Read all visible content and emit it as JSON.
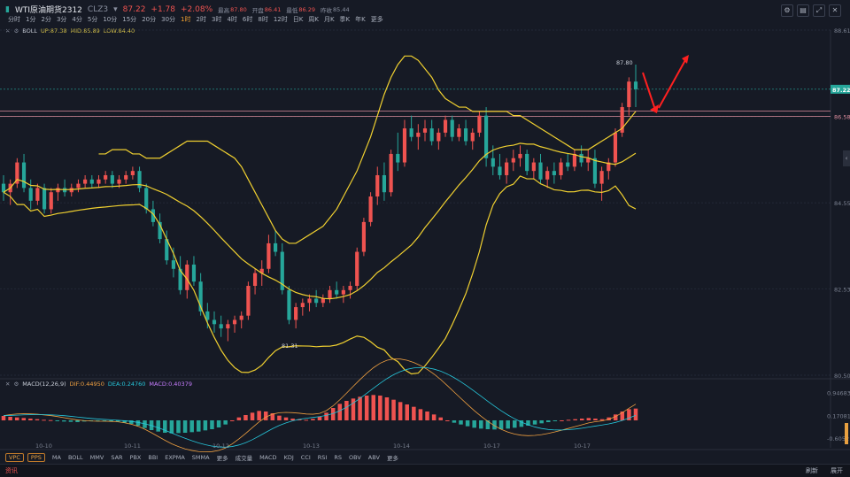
{
  "header": {
    "name": "WTI原油期货2312",
    "code": "CLZ3",
    "dropdown": "▾",
    "price": "87.22",
    "change": "+1.78",
    "change_pct": "+2.08%",
    "high_label": "最高",
    "high": "87.80",
    "open_label": "开盘",
    "open": "86.41",
    "low_label": "最低",
    "low": "86.29",
    "prev_label": "昨收",
    "prev": "85.44"
  },
  "timeframes": [
    "分时",
    "1分",
    "2分",
    "3分",
    "4分",
    "5分",
    "10分",
    "15分",
    "20分",
    "30分",
    "1时",
    "2时",
    "3时",
    "4时",
    "6时",
    "8时",
    "12时",
    "日K",
    "周K",
    "月K",
    "季K",
    "年K",
    "更多"
  ],
  "active_timeframe": "1时",
  "tool_icons": [
    "settings-icon",
    "layout-icon",
    "maximize-icon",
    "close-icon"
  ],
  "boll_legend": {
    "name": "BOLL",
    "up": "UP:87.38",
    "mid": "MID:85.89",
    "low": "LOW:84.40"
  },
  "macd_legend": {
    "name": "MACD(12,26,9)",
    "dif": "DIF:0.44950",
    "dea": "DEA:0.24760",
    "macd": "MACD:0.40379"
  },
  "indicators": [
    "MA",
    "BOLL",
    "MMV",
    "SAR",
    "PBX",
    "BBI",
    "EXPMA",
    "SMMA",
    "更多",
    "成交量",
    "MACD",
    "KDJ",
    "CCI",
    "RSI",
    "RS",
    "OBV",
    "ABV",
    "更多"
  ],
  "indicator_buttons": [
    "VPC",
    "PPS"
  ],
  "status": {
    "info": "资讯",
    "refresh": "刷新",
    "expand": "展开"
  },
  "colors": {
    "up": "#ef5350",
    "down": "#26a69a",
    "boll": "#f0d030",
    "dif": "#f0a040",
    "dea": "#26c6da",
    "bg": "#161a25"
  },
  "chart_data": [
    {
      "type": "candlestick",
      "title": "WTI原油期货2312 1时",
      "y_ticks": [
        "88.61",
        "86.58",
        "84.55",
        "82.53",
        "80.50"
      ],
      "ylim": [
        80.5,
        88.61
      ],
      "x_ticks": [
        "10-10",
        "10-11",
        "10-12",
        "10-13",
        "10-14",
        "10-17",
        "10-17"
      ],
      "last_price_label": "87.22",
      "last_price": 87.22,
      "reference_line": 86.58,
      "annotations": [
        {
          "text": "87.80",
          "type": "high"
        },
        {
          "text": "81.31",
          "type": "low"
        }
      ],
      "ohlc": [
        [
          85.0,
          85.2,
          84.6,
          84.8
        ],
        [
          84.8,
          85.1,
          84.5,
          85.0
        ],
        [
          85.0,
          85.6,
          84.9,
          85.5
        ],
        [
          85.5,
          85.7,
          84.8,
          84.9
        ],
        [
          84.9,
          85.1,
          84.4,
          84.6
        ],
        [
          84.6,
          85.0,
          84.5,
          84.9
        ],
        [
          84.9,
          85.0,
          84.3,
          84.4
        ],
        [
          84.4,
          84.9,
          84.3,
          84.8
        ],
        [
          84.8,
          85.0,
          84.6,
          84.9
        ],
        [
          84.9,
          85.1,
          84.7,
          84.8
        ],
        [
          84.8,
          85.0,
          84.7,
          84.9
        ],
        [
          84.9,
          85.1,
          84.8,
          85.0
        ],
        [
          85.0,
          85.2,
          84.9,
          85.1
        ],
        [
          85.1,
          85.2,
          84.9,
          85.0
        ],
        [
          85.0,
          85.2,
          84.9,
          85.1
        ],
        [
          85.1,
          85.3,
          85.0,
          85.2
        ],
        [
          85.2,
          85.3,
          84.9,
          85.0
        ],
        [
          85.0,
          85.2,
          84.9,
          85.1
        ],
        [
          85.1,
          85.3,
          85.0,
          85.2
        ],
        [
          85.2,
          85.4,
          85.1,
          85.3
        ],
        [
          85.3,
          85.4,
          84.8,
          84.9
        ],
        [
          84.9,
          85.0,
          84.3,
          84.4
        ],
        [
          84.4,
          84.6,
          84.0,
          84.1
        ],
        [
          84.1,
          84.3,
          83.6,
          83.7
        ],
        [
          83.7,
          83.9,
          83.1,
          83.2
        ],
        [
          83.2,
          83.5,
          82.8,
          83.0
        ],
        [
          83.0,
          83.3,
          82.4,
          82.5
        ],
        [
          82.5,
          83.2,
          82.3,
          83.1
        ],
        [
          83.1,
          83.3,
          82.6,
          82.7
        ],
        [
          82.7,
          82.9,
          81.9,
          82.0
        ],
        [
          82.0,
          82.2,
          81.6,
          81.8
        ],
        [
          81.8,
          82.0,
          81.5,
          81.7
        ],
        [
          81.7,
          81.9,
          81.4,
          81.6
        ],
        [
          81.6,
          81.8,
          81.3,
          81.7
        ],
        [
          81.7,
          81.9,
          81.5,
          81.8
        ],
        [
          81.8,
          82.0,
          81.6,
          81.9
        ],
        [
          81.9,
          82.7,
          81.8,
          82.6
        ],
        [
          82.6,
          83.0,
          82.4,
          82.9
        ],
        [
          82.9,
          83.2,
          82.6,
          83.0
        ],
        [
          83.0,
          83.8,
          82.9,
          83.6
        ],
        [
          83.6,
          83.9,
          83.3,
          83.4
        ],
        [
          83.4,
          83.6,
          82.4,
          82.5
        ],
        [
          82.5,
          82.6,
          81.7,
          81.8
        ],
        [
          81.8,
          82.2,
          81.6,
          82.1
        ],
        [
          82.1,
          82.3,
          81.9,
          82.2
        ],
        [
          82.2,
          82.4,
          82.0,
          82.3
        ],
        [
          82.3,
          82.5,
          82.1,
          82.2
        ],
        [
          82.2,
          82.4,
          82.1,
          82.3
        ],
        [
          82.3,
          82.6,
          82.2,
          82.5
        ],
        [
          82.5,
          82.7,
          82.3,
          82.4
        ],
        [
          82.4,
          82.6,
          82.2,
          82.5
        ],
        [
          82.5,
          82.7,
          82.3,
          82.6
        ],
        [
          82.6,
          83.5,
          82.5,
          83.4
        ],
        [
          83.4,
          84.2,
          83.3,
          84.1
        ],
        [
          84.1,
          84.8,
          84.0,
          84.7
        ],
        [
          84.7,
          85.4,
          84.5,
          85.2
        ],
        [
          85.2,
          85.5,
          84.6,
          84.8
        ],
        [
          84.8,
          85.8,
          84.7,
          85.7
        ],
        [
          85.7,
          86.2,
          85.3,
          85.5
        ],
        [
          85.5,
          86.5,
          85.4,
          86.3
        ],
        [
          86.3,
          86.6,
          86.0,
          86.1
        ],
        [
          86.1,
          86.4,
          85.8,
          86.2
        ],
        [
          86.2,
          86.5,
          86.0,
          86.3
        ],
        [
          86.3,
          86.5,
          85.9,
          86.0
        ],
        [
          86.0,
          86.3,
          85.8,
          86.2
        ],
        [
          86.2,
          86.6,
          86.1,
          86.5
        ],
        [
          86.5,
          86.6,
          86.0,
          86.1
        ],
        [
          86.1,
          86.4,
          86.0,
          86.3
        ],
        [
          86.3,
          86.5,
          85.9,
          86.0
        ],
        [
          86.0,
          86.3,
          85.8,
          86.2
        ],
        [
          86.2,
          86.7,
          86.1,
          86.6
        ],
        [
          86.6,
          86.8,
          85.4,
          85.6
        ],
        [
          85.6,
          85.9,
          85.2,
          85.4
        ],
        [
          85.4,
          85.7,
          85.1,
          85.2
        ],
        [
          85.2,
          85.6,
          85.0,
          85.5
        ],
        [
          85.5,
          85.8,
          85.3,
          85.6
        ],
        [
          85.6,
          85.9,
          85.4,
          85.7
        ],
        [
          85.7,
          85.8,
          85.2,
          85.3
        ],
        [
          85.3,
          85.6,
          85.1,
          85.5
        ],
        [
          85.5,
          85.7,
          85.0,
          85.1
        ],
        [
          85.1,
          85.4,
          84.9,
          85.3
        ],
        [
          85.3,
          85.5,
          85.0,
          85.2
        ],
        [
          85.2,
          85.6,
          85.1,
          85.5
        ],
        [
          85.5,
          85.7,
          85.3,
          85.4
        ],
        [
          85.4,
          85.8,
          85.3,
          85.7
        ],
        [
          85.7,
          85.9,
          85.4,
          85.5
        ],
        [
          85.5,
          85.8,
          85.3,
          85.6
        ],
        [
          85.6,
          85.8,
          84.9,
          85.0
        ],
        [
          85.0,
          85.4,
          84.6,
          85.3
        ],
        [
          85.3,
          85.6,
          85.1,
          85.5
        ],
        [
          85.5,
          86.3,
          85.4,
          86.2
        ],
        [
          86.2,
          86.9,
          86.1,
          86.8
        ],
        [
          86.8,
          87.5,
          86.6,
          87.4
        ],
        [
          87.4,
          87.8,
          86.8,
          87.22
        ]
      ],
      "boll_upper": [
        85.7,
        85.7,
        85.8,
        85.8,
        85.8,
        85.7,
        85.7,
        85.6,
        85.6,
        85.6,
        85.7,
        85.8,
        85.9,
        86.0,
        86.0,
        86.0,
        86.0,
        85.9,
        85.8,
        85.7,
        85.6,
        85.4,
        85.1,
        84.8,
        84.5,
        84.2,
        83.9,
        83.7,
        83.6,
        83.6,
        83.7,
        83.8,
        83.9,
        84.0,
        84.2,
        84.4,
        84.7,
        85.0,
        85.3,
        85.7,
        86.1,
        86.6,
        87.1,
        87.5,
        87.8,
        88.0,
        88.0,
        87.9,
        87.7,
        87.5,
        87.2,
        87.0,
        86.9,
        86.8,
        86.8,
        86.7,
        86.7,
        86.7,
        86.7,
        86.7,
        86.7,
        86.6,
        86.6,
        86.5,
        86.4,
        86.3,
        86.2,
        86.1,
        86.0,
        85.9,
        85.8,
        85.8,
        85.8,
        85.9,
        86.0,
        86.1,
        86.2,
        86.3,
        86.5,
        86.7
      ]
    },
    {
      "type": "macd",
      "y_ticks": [
        "0.94683",
        "0.17081",
        "-0.6052"
      ],
      "ylim": [
        -0.75,
        1.05
      ],
      "hist": [
        0.15,
        0.12,
        0.1,
        0.08,
        0.06,
        0.04,
        0.02,
        0.01,
        -0.02,
        -0.04,
        -0.05,
        -0.06,
        -0.04,
        -0.03,
        -0.02,
        -0.01,
        -0.02,
        -0.04,
        -0.08,
        -0.12,
        -0.18,
        -0.26,
        -0.33,
        -0.38,
        -0.42,
        -0.44,
        -0.43,
        -0.42,
        -0.4,
        -0.38,
        -0.34,
        -0.3,
        -0.24,
        -0.14,
        0.0,
        0.1,
        0.18,
        0.26,
        0.32,
        0.3,
        0.24,
        0.16,
        0.1,
        0.06,
        0.04,
        0.02,
        0.05,
        0.12,
        0.26,
        0.42,
        0.56,
        0.66,
        0.74,
        0.8,
        0.84,
        0.86,
        0.84,
        0.78,
        0.7,
        0.62,
        0.54,
        0.46,
        0.38,
        0.3,
        0.2,
        0.1,
        0.0,
        -0.08,
        -0.14,
        -0.2,
        -0.25,
        -0.28,
        -0.3,
        -0.31,
        -0.3,
        -0.28,
        -0.25,
        -0.22,
        -0.18,
        -0.14,
        -0.1,
        -0.06,
        -0.03,
        0.0,
        0.02,
        0.04,
        0.06,
        0.08,
        0.06,
        0.04,
        0.1,
        0.2,
        0.3,
        0.38,
        0.4
      ]
    }
  ]
}
